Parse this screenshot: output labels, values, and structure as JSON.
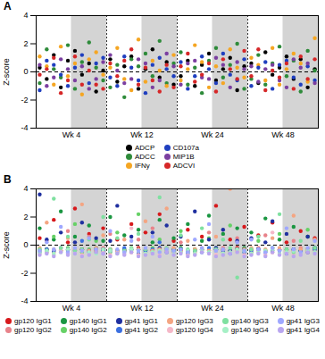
{
  "chart_data": [
    {
      "type": "scatter",
      "title": "A",
      "ylabel": "Z-score",
      "ylim": [
        -4,
        4
      ],
      "yticks": [
        -4,
        -2,
        0,
        2,
        4
      ],
      "tick_labels": "y",
      "x_groups": [
        "Wk 4",
        "Wk 12",
        "Wk 24",
        "Wk 48"
      ],
      "hlines": [
        0
      ],
      "categories": [
        null,
        null,
        null,
        null,
        null,
        null,
        null,
        null,
        null,
        null,
        null,
        null,
        null,
        null,
        null,
        null,
        null,
        null,
        null,
        null,
        null,
        null,
        null,
        null,
        null,
        null,
        null,
        null,
        null,
        null,
        null,
        null,
        null,
        null,
        null,
        null,
        null,
        null,
        null,
        null
      ],
      "series": [
        {
          "name": "ADCP",
          "color": "#000000",
          "values": [
            0.3,
            -0.5,
            1.2,
            -1.1,
            0.8,
            1.5,
            -0.2,
            0.6,
            -1.4,
            0.1,
            0.9,
            -0.7,
            0.4,
            1.1,
            -1.2,
            0.2,
            1.6,
            -0.4,
            0.7,
            -0.9,
            -0.3,
            0.8,
            -1.0,
            0.5,
            1.3,
            -0.6,
            0.2,
            1.0,
            -1.3,
            0.4,
            0.6,
            -0.8,
            1.4,
            -0.2,
            0.3,
            1.1,
            -0.5,
            0.9,
            -1.1,
            0.2
          ]
        },
        {
          "name": "ADCC",
          "color": "#2e8b3a",
          "values": [
            -0.8,
            1.6,
            0.2,
            -0.4,
            1.9,
            -1.2,
            0.7,
            2.1,
            0.3,
            -0.6,
            -1.1,
            0.5,
            -1.8,
            0.9,
            0.4,
            1.3,
            -0.3,
            2.2,
            -0.8,
            0.6,
            1.4,
            -0.9,
            0.3,
            -1.5,
            0.8,
            1.7,
            -0.4,
            0.5,
            2.0,
            -1.2,
            -0.5,
            1.2,
            -0.9,
            0.6,
            1.8,
            -0.3,
            0.8,
            -1.4,
            1.5,
            0.1
          ]
        },
        {
          "name": "IFNy",
          "color": "#f5a623",
          "values": [
            1.1,
            0.4,
            -0.9,
            1.8,
            -0.3,
            0.6,
            -1.6,
            0.9,
            1.4,
            -0.2,
            0.3,
            1.7,
            -0.5,
            -1.3,
            2.3,
            -0.7,
            0.8,
            0.1,
            -1.0,
            1.2,
            -0.6,
            0.2,
            1.9,
            0.7,
            -1.1,
            0.4,
            -0.8,
            1.6,
            0.3,
            -0.4,
            1.0,
            0.5,
            -0.6,
            1.7,
            -0.9,
            0.2,
            1.3,
            0.6,
            -0.7,
            2.4
          ]
        },
        {
          "name": "CD107a",
          "color": "#1f3fbf",
          "values": [
            -1.3,
            0.8,
            0.5,
            -0.2,
            -1.0,
            0.3,
            1.2,
            -0.8,
            0.6,
            1.0,
            -0.4,
            -1.0,
            1.1,
            0.3,
            -0.6,
            -1.5,
            0.5,
            1.0,
            0.2,
            -0.3,
            0.7,
            -1.2,
            -0.3,
            1.1,
            0.2,
            -0.8,
            1.3,
            -0.2,
            -0.6,
            0.9,
            -1.0,
            0.3,
            0.7,
            -1.2,
            0.5,
            0.8,
            -0.4,
            -0.9,
            0.4,
            -0.6
          ]
        },
        {
          "name": "MIP1B",
          "color": "#7b3fa0",
          "values": [
            0.5,
            -1.0,
            -0.4,
            0.9,
            0.2,
            -0.6,
            0.4,
            -1.2,
            -0.5,
            0.7,
            1.2,
            0.1,
            -0.8,
            -0.5,
            0.9,
            0.6,
            -1.1,
            -0.6,
            1.3,
            0.4,
            -0.9,
            0.6,
            0.8,
            -0.4,
            -0.5,
            1.0,
            0.5,
            -1.1,
            0.7,
            0.2,
            0.4,
            -0.7,
            0.2,
            0.5,
            -0.6,
            -1.1,
            0.9,
            0.3,
            0.6,
            -0.8
          ]
        },
        {
          "name": "ADCVI",
          "color": "#d62728",
          "values": [
            -0.2,
            0.2,
            1.0,
            -1.5,
            -0.6,
            1.1,
            -0.9,
            0.1,
            -0.9,
            -1.2,
            0.6,
            -0.3,
            0.8,
            1.6,
            -0.9,
            0.3,
            -0.6,
            -1.4,
            0.5,
            -1.1,
            0.4,
            1.3,
            -0.7,
            -0.2,
            0.6,
            -1.4,
            0.9,
            0.2,
            -0.5,
            1.5,
            -0.3,
            1.6,
            -1.3,
            0.1,
            -0.4,
            0.6,
            -1.2,
            1.1,
            -0.5,
            0.9
          ]
        }
      ]
    },
    {
      "type": "scatter",
      "title": "B",
      "ylabel": "Z-score",
      "ylim": [
        -4,
        4
      ],
      "yticks": [
        -4,
        -2,
        0,
        2,
        4
      ],
      "tick_labels": "y",
      "x_groups": [
        "Wk 4",
        "Wk 12",
        "Wk 24",
        "Wk 48"
      ],
      "hlines": [
        0
      ],
      "categories": [
        null,
        null,
        null,
        null,
        null,
        null,
        null,
        null,
        null,
        null,
        null,
        null,
        null,
        null,
        null,
        null,
        null,
        null,
        null,
        null,
        null,
        null,
        null,
        null,
        null,
        null,
        null,
        null,
        null,
        null,
        null,
        null,
        null,
        null,
        null,
        null,
        null,
        null,
        null,
        null
      ],
      "series": [
        {
          "name": "gp120 IgG1",
          "color": "#d7191c",
          "values": [
            0.5,
            -0.3,
            1.8,
            -0.4,
            0.2,
            2.6,
            -0.3,
            0.8,
            -0.4,
            1.2,
            -0.3,
            0.4,
            -0.4,
            1.5,
            -0.2,
            0.9,
            -0.4,
            2.2,
            -0.3,
            0.3,
            -0.4,
            1.1,
            -0.3,
            0.6,
            -0.4,
            2.8,
            -0.3,
            0.4,
            -0.2,
            1.3,
            -0.3,
            0.7,
            -0.4,
            1.6,
            -0.3,
            0.2,
            -0.4,
            1.0,
            -0.3,
            0.5
          ]
        },
        {
          "name": "gp120 IgG2",
          "color": "#e8828a",
          "values": [
            -0.4,
            0.3,
            -0.5,
            -0.2,
            1.0,
            -0.4,
            -0.3,
            0.6,
            -0.5,
            -0.2,
            0.8,
            -0.4,
            -0.3,
            -0.5,
            0.4,
            -0.3,
            1.2,
            -0.4,
            -0.2,
            -0.5,
            0.2,
            -0.4,
            -0.5,
            -0.3,
            0.9,
            -0.4,
            -0.2,
            -0.5,
            0.5,
            -0.3,
            -0.4,
            -0.2,
            0.7,
            -0.5,
            -0.3,
            -0.4,
            0.3,
            -0.2,
            -0.5,
            -0.4
          ]
        },
        {
          "name": "gp140 IgG1",
          "color": "#1a9641",
          "values": [
            1.2,
            -0.3,
            0.4,
            2.4,
            -0.4,
            0.6,
            -0.3,
            1.4,
            -0.2,
            0.3,
            2.0,
            -0.4,
            0.7,
            -0.3,
            1.1,
            -0.4,
            0.2,
            1.8,
            -0.3,
            0.5,
            -0.2,
            1.5,
            -0.4,
            0.3,
            2.1,
            -0.3,
            0.8,
            -0.4,
            1.2,
            -0.2,
            0.9,
            -0.3,
            1.9,
            -0.4,
            0.4,
            -0.3,
            1.3,
            -0.4,
            0.6,
            -0.2
          ]
        },
        {
          "name": "gp140 IgG2",
          "color": "#66d166",
          "values": [
            -0.3,
            -0.5,
            0.6,
            -0.4,
            -0.2,
            1.5,
            -0.5,
            -0.3,
            0.3,
            -0.4,
            -0.5,
            0.9,
            -0.3,
            -0.4,
            2.2,
            -0.5,
            -0.2,
            0.4,
            -0.4,
            -0.3,
            1.0,
            -0.5,
            -0.3,
            -0.4,
            0.5,
            -0.2,
            -0.5,
            1.4,
            -0.3,
            -0.4,
            -0.5,
            0.3,
            -0.4,
            -0.2,
            0.8,
            -0.5,
            -0.3,
            -0.4,
            1.1,
            -0.3
          ]
        },
        {
          "name": "gp41 IgG1",
          "color": "#1f2f9f",
          "values": [
            3.6,
            0.4,
            -0.4,
            0.9,
            -0.3,
            0.2,
            1.6,
            -0.4,
            0.5,
            -0.3,
            0.3,
            2.8,
            -0.4,
            0.6,
            -0.3,
            -0.4,
            0.9,
            -0.2,
            1.4,
            -0.3,
            0.6,
            -0.4,
            2.4,
            -0.3,
            0.4,
            -0.2,
            1.1,
            -0.4,
            0.3,
            -0.3,
            0.5,
            -0.3,
            0.2,
            1.7,
            -0.4,
            0.8,
            -0.3,
            -0.4,
            0.6,
            -0.2
          ]
        },
        {
          "name": "gp41 IgG2",
          "color": "#3b6fe0",
          "values": [
            -0.5,
            -0.3,
            -0.4,
            -0.2,
            -0.6,
            -0.4,
            0.3,
            -0.5,
            -0.3,
            -0.4,
            -0.4,
            -0.5,
            -0.2,
            -0.3,
            -0.6,
            -0.4,
            -0.3,
            0.2,
            -0.5,
            -0.4,
            -0.3,
            -0.6,
            -0.4,
            -0.5,
            -0.2,
            -0.3,
            -0.4,
            -0.6,
            -0.3,
            -0.5,
            -0.4,
            -0.3,
            -0.5,
            -0.2,
            -0.4,
            -0.6,
            -0.3,
            -0.4,
            -0.5,
            -0.3
          ]
        },
        {
          "name": "gp120 IgG3",
          "color": "#f4a582",
          "values": [
            -0.2,
            1.6,
            -0.3,
            -0.4,
            0.5,
            -0.3,
            2.9,
            -0.4,
            -0.2,
            0.7,
            -0.3,
            -0.4,
            0.4,
            -0.2,
            -0.3,
            1.7,
            -0.4,
            -0.3,
            2.6,
            -0.2,
            -0.4,
            0.3,
            -0.3,
            -0.2,
            -0.4,
            0.6,
            -0.3,
            4.0,
            -0.4,
            -0.3,
            -0.2,
            -0.4,
            -0.3,
            0.5,
            -0.2,
            -0.4,
            2.1,
            -0.3,
            -0.4,
            0.4
          ]
        },
        {
          "name": "gp120 IgG4",
          "color": "#f5b8c8",
          "values": [
            -0.6,
            -0.5,
            -0.7,
            -0.4,
            -0.6,
            -0.5,
            -0.7,
            -0.6,
            -0.4,
            -0.5,
            -0.7,
            -0.5,
            -0.6,
            1.2,
            -0.7,
            -0.6,
            -0.5,
            -0.7,
            -0.4,
            -0.6,
            -0.5,
            -0.7,
            -0.6,
            -0.4,
            -0.5,
            -0.7,
            -0.6,
            -0.5,
            -0.4,
            -0.7,
            -0.6,
            -0.5,
            -0.7,
            0.9,
            -0.6,
            -0.5,
            -0.7,
            -0.6,
            -0.4,
            -0.5
          ]
        },
        {
          "name": "gp140 IgG3",
          "color": "#7fe0a0",
          "values": [
            -0.3,
            -0.4,
            3.3,
            -0.2,
            0.6,
            -0.4,
            -0.3,
            0.4,
            -0.5,
            2.0,
            -0.3,
            0.5,
            -0.4,
            -0.2,
            0.8,
            -0.3,
            -0.5,
            3.4,
            -0.2,
            -0.4,
            0.7,
            -0.3,
            -0.4,
            1.2,
            -0.5,
            -0.3,
            0.4,
            -0.2,
            -2.3,
            -0.4,
            -0.3,
            0.6,
            -0.4,
            -0.2,
            2.2,
            -0.3,
            -0.5,
            0.3,
            -0.4,
            -0.2
          ]
        },
        {
          "name": "gp140 IgG4",
          "color": "#a6f0c6",
          "values": [
            -0.5,
            -0.4,
            -0.6,
            -0.5,
            -0.3,
            -0.6,
            -0.4,
            -0.5,
            -0.6,
            -0.3,
            -0.4,
            -0.6,
            -0.5,
            -0.3,
            -0.4,
            -0.6,
            -0.5,
            -0.4,
            -0.3,
            -0.6,
            -0.5,
            -0.4,
            -0.6,
            -0.3,
            -0.5,
            -0.4,
            -0.6,
            -0.5,
            -0.3,
            -0.4,
            -0.6,
            -0.5,
            -0.4,
            -0.3,
            -0.6,
            -0.5,
            -0.4,
            -0.6,
            -0.3,
            -0.5
          ]
        },
        {
          "name": "gp41 IgG3",
          "color": "#9fa8ff",
          "values": [
            -0.4,
            0.2,
            -0.3,
            1.3,
            -0.5,
            -0.2,
            -0.4,
            0.5,
            -0.3,
            -0.6,
            1.0,
            -0.3,
            -0.5,
            0.3,
            -0.4,
            -0.2,
            0.6,
            -0.5,
            -0.3,
            -0.4,
            -0.3,
            -0.5,
            0.4,
            -0.2,
            1.5,
            -0.4,
            -0.3,
            -0.6,
            0.2,
            -0.4,
            0.4,
            -0.3,
            -0.5,
            -0.2,
            -0.4,
            1.2,
            -0.3,
            -0.5,
            -0.2,
            0.3
          ]
        },
        {
          "name": "gp41 IgG4",
          "color": "#b9a6f0",
          "values": [
            -0.7,
            -0.6,
            -0.8,
            -0.5,
            -0.7,
            -0.6,
            -0.8,
            -0.7,
            -0.5,
            -0.6,
            -0.8,
            -0.6,
            -0.7,
            -0.5,
            -0.8,
            -0.7,
            -0.6,
            -0.8,
            -0.5,
            -0.7,
            -0.6,
            -0.8,
            -0.7,
            -0.5,
            -0.6,
            -0.8,
            -0.7,
            -0.6,
            -0.5,
            -0.8,
            -0.7,
            -0.6,
            -0.8,
            -0.5,
            -0.7,
            -0.6,
            -0.8,
            -0.7,
            -0.5,
            -0.6
          ]
        }
      ]
    }
  ]
}
